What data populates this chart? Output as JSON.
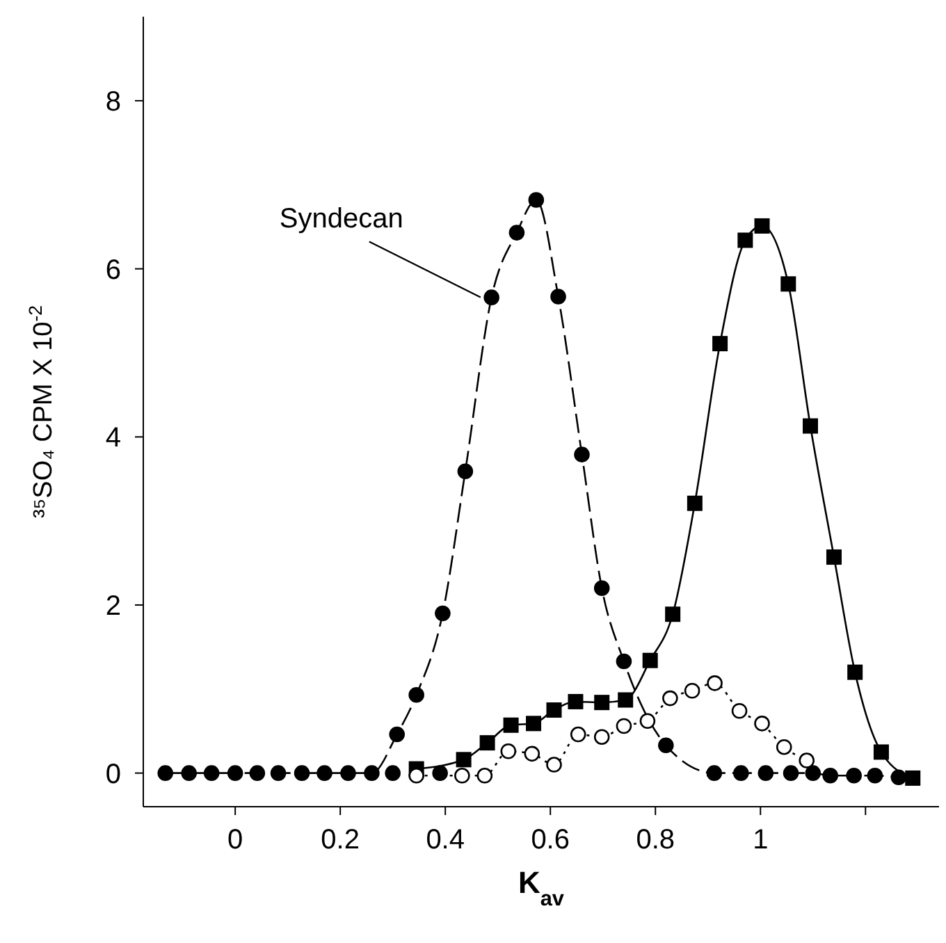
{
  "chart_data": {
    "type": "line",
    "xlabel": "K$_{av}$",
    "ylabel": "³⁵SO₄ CPM X 10$^{-2}$",
    "xlim": [
      -0.175,
      1.34
    ],
    "ylim": [
      -0.4,
      9
    ],
    "xticks": [
      0,
      0.2,
      0.4,
      0.6,
      0.8,
      1.0,
      {
        "value": 1.2,
        "label": null
      }
    ],
    "yticks": [
      0,
      2,
      4,
      6,
      8
    ],
    "grid": false,
    "legend": false,
    "series": [
      {
        "name": "Syndecan",
        "color": "#000000",
        "marker": "circle",
        "line_style": "dashed",
        "x": [
          -0.133,
          -0.088,
          -0.045,
          0,
          0.042,
          0.082,
          0.127,
          0.17,
          0.215,
          0.26,
          0.308,
          0.345,
          0.395,
          0.438,
          0.488,
          0.536,
          0.573,
          0.615,
          0.66,
          0.698,
          0.74,
          0.82,
          0.912,
          0.963,
          1.01,
          1.058,
          1.1,
          1.133,
          1.178,
          1.218,
          1.263
        ],
        "values": [
          0,
          0,
          0,
          0,
          0,
          0,
          0,
          0,
          0,
          0,
          0.46,
          0.93,
          1.9,
          3.59,
          5.66,
          6.43,
          6.82,
          5.67,
          3.79,
          2.2,
          1.33,
          0.33,
          0,
          0,
          0,
          0,
          0,
          -0.03,
          -0.03,
          -0.03,
          -0.05
        ]
      },
      {
        "type": "scatter",
        "color": "#000000",
        "marker": "circle",
        "x": [
          0.3,
          0.39
        ],
        "values": [
          0,
          0
        ]
      },
      {
        "color": "#000000",
        "marker": "square",
        "line_style": "solid",
        "x": [
          0.345,
          0.435,
          0.48,
          0.525,
          0.568,
          0.607,
          0.648,
          0.698,
          0.743,
          0.79,
          0.833,
          0.875,
          0.923,
          0.971,
          1.003,
          1.053,
          1.095,
          1.14,
          1.18,
          1.23,
          1.29
        ],
        "values": [
          0.05,
          0.16,
          0.36,
          0.57,
          0.59,
          0.75,
          0.85,
          0.84,
          0.87,
          1.34,
          1.89,
          3.21,
          5.11,
          6.34,
          6.51,
          5.82,
          4.13,
          2.57,
          1.2,
          0.25,
          -0.06
        ]
      },
      {
        "color": "#000000",
        "marker": "circle",
        "line_style": "dotted",
        "x": [
          0.345,
          0.432,
          0.475,
          0.52,
          0.565,
          0.607,
          0.653,
          0.698,
          0.74,
          0.785,
          0.828,
          0.87,
          0.913,
          0.96,
          1.003,
          1.045,
          1.088
        ],
        "values": [
          -0.03,
          -0.03,
          -0.03,
          0.26,
          0.23,
          0.1,
          0.46,
          0.43,
          0.56,
          0.62,
          0.89,
          0.98,
          1.07,
          0.74,
          0.59,
          0.31,
          0.15
        ]
      }
    ]
  }
}
